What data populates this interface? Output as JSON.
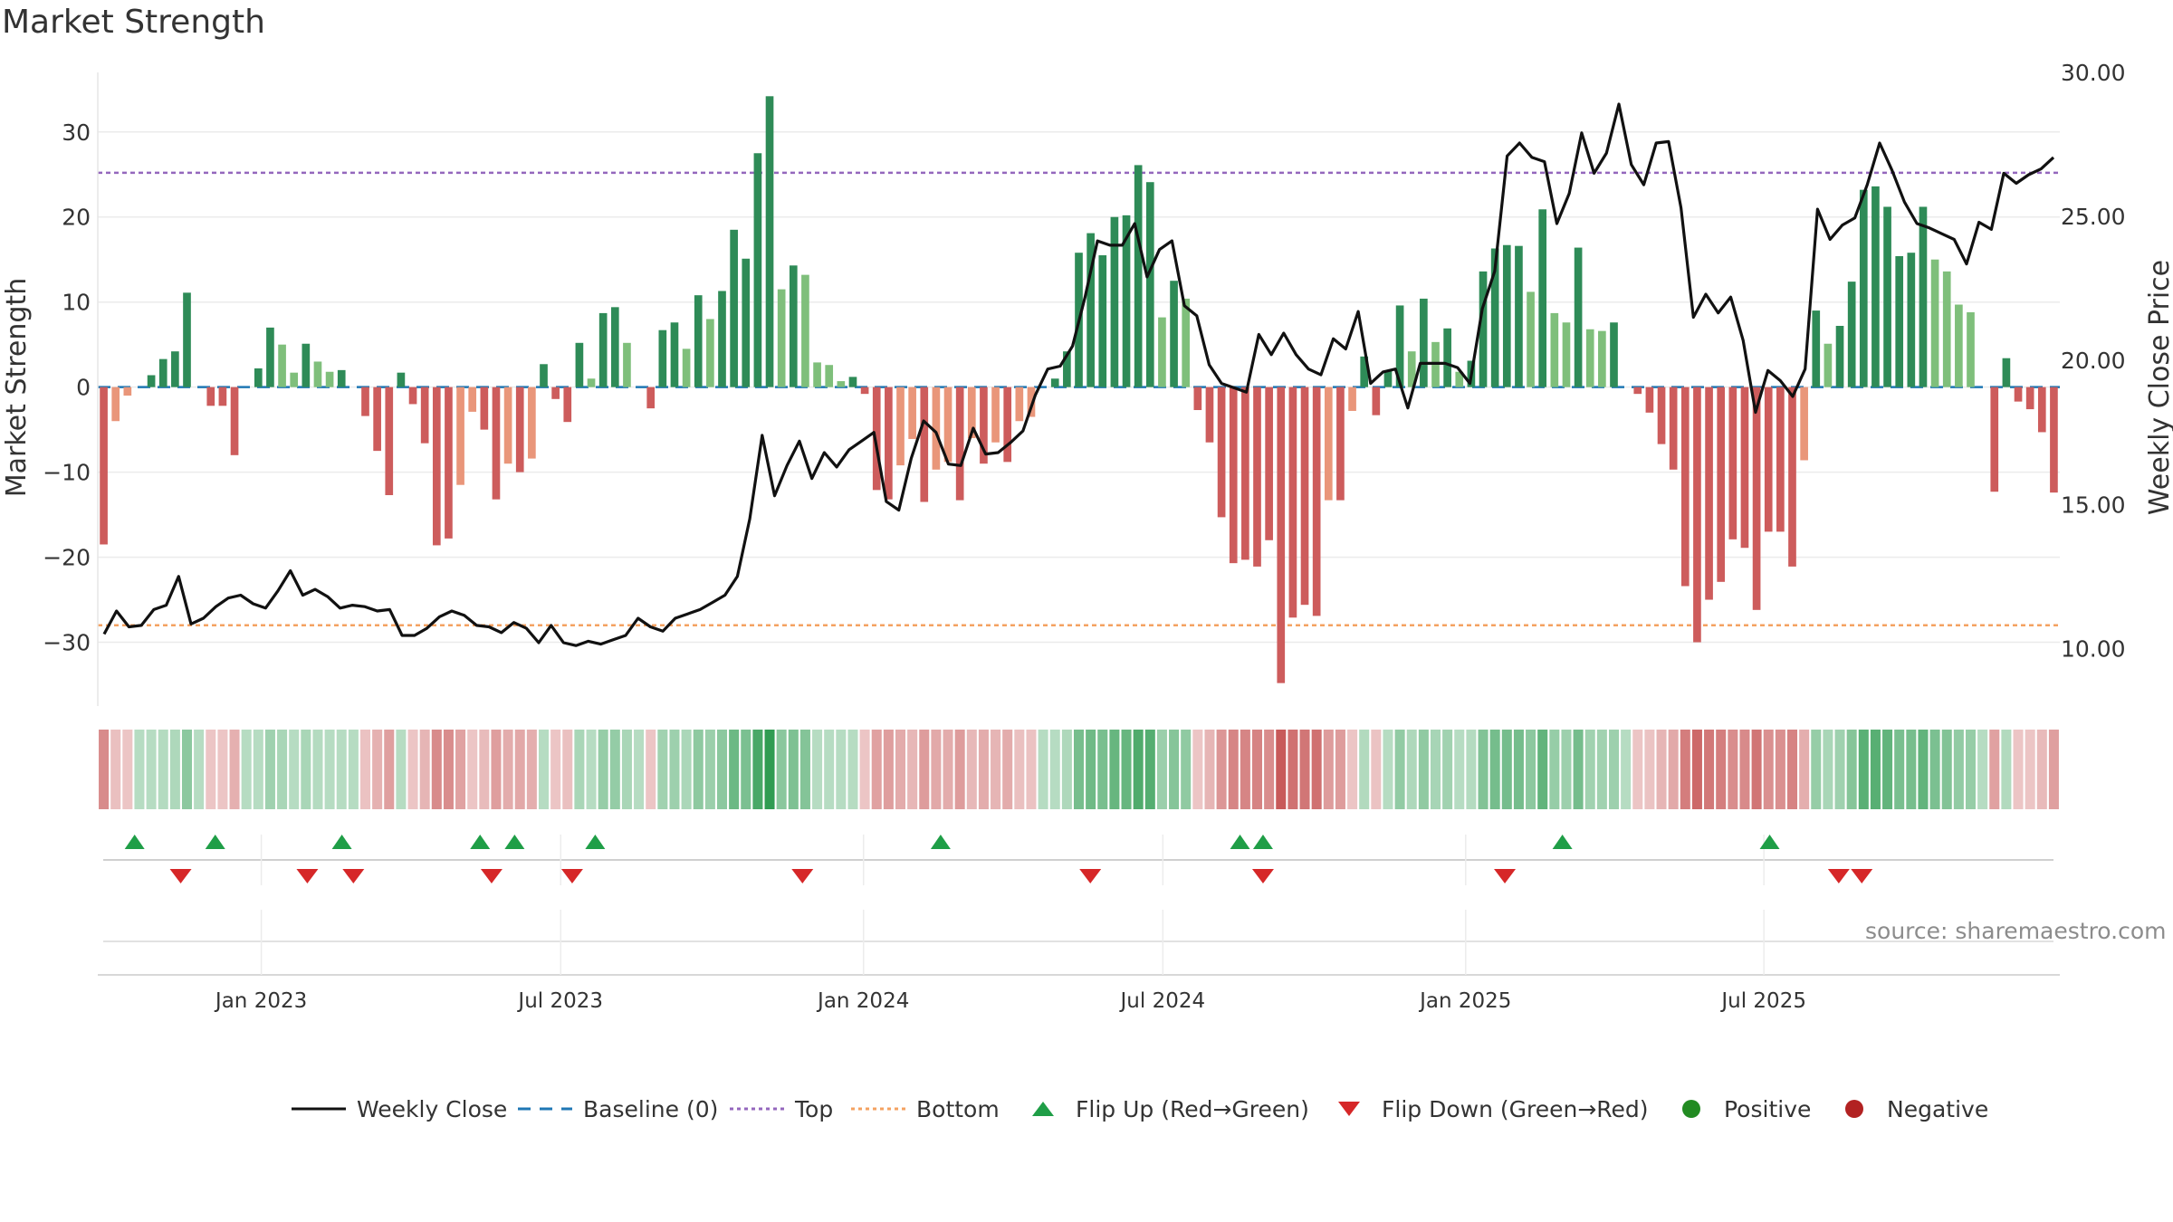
{
  "chart_data": {
    "type": "bar+line",
    "title": "Market Strength",
    "ylabel_left": "Market Strength",
    "ylabel_right": "Weekly Close Price",
    "left_axis": {
      "range": [
        -37.5,
        37.0
      ],
      "ticks": [
        30,
        20,
        10,
        0,
        -10,
        -20,
        -30
      ],
      "tick_labels": [
        "30",
        "20",
        "10",
        "0",
        "−10",
        "−20",
        "−30"
      ]
    },
    "right_axis": {
      "range": [
        8.0,
        30.0
      ],
      "ticks": [
        30,
        25,
        20,
        15,
        10
      ],
      "tick_labels": [
        "30.00",
        "25.00",
        "20.00",
        "15.00",
        "10.00"
      ]
    },
    "x_axis": {
      "start_week": -13.2,
      "end_week": 157.2,
      "ticks": [
        {
          "label": "Jan 2023",
          "week": 1.0
        },
        {
          "label": "Jul 2023",
          "week": 27.0
        },
        {
          "label": "Jan 2024",
          "week": 53.3
        },
        {
          "label": "Jul 2024",
          "week": 79.3
        },
        {
          "label": "Jan 2025",
          "week": 105.6
        },
        {
          "label": "Jul 2025",
          "week": 131.5
        }
      ]
    },
    "reference_lines": {
      "top": 25.2,
      "bottom": -28.0,
      "baseline": 0
    },
    "colors": {
      "green_dark": "#2e8b57",
      "green_light": "#7fbf7b",
      "red_dark": "#cd5c5c",
      "red_light": "#e9967a",
      "price_line": "#111111",
      "top_line": "#9467bd",
      "bottom_line": "#f4a261",
      "baseline": "#1f77b4",
      "flip_up": "#1f9e47",
      "flip_down": "#d62728",
      "positive_dot": "#228b22",
      "negative_dot": "#b22222"
    },
    "strength": [
      -18.5,
      -4,
      -1,
      0,
      1.4,
      3.3,
      4.2,
      11.1,
      0,
      -2.2,
      -2.2,
      -8,
      0,
      2.2,
      7,
      5,
      1.7,
      5.1,
      3,
      1.8,
      2,
      0,
      -3.4,
      -7.5,
      -12.7,
      1.7,
      -2,
      -6.6,
      -18.6,
      -17.8,
      -11.5,
      -2.9,
      -5,
      -13.2,
      -9,
      -10,
      -8.4,
      2.7,
      -1.4,
      -4.1,
      5.2,
      1,
      8.7,
      9.4,
      5.2,
      0,
      -2.5,
      6.7,
      7.6,
      4.5,
      10.8,
      8,
      11.3,
      18.5,
      15.1,
      27.5,
      34.2,
      11.5,
      14.3,
      13.2,
      2.9,
      2.6,
      0.7,
      1.2,
      -0.8,
      -12.1,
      -13.2,
      -9.2,
      -6.1,
      -13.5,
      -9.7,
      -8.8,
      -13.3,
      -6,
      -9,
      -6.5,
      -8.8,
      -4,
      -3.5,
      0,
      1,
      4.2,
      15.8,
      18.1,
      15.5,
      20,
      20.2,
      26.1,
      24.1,
      8.2,
      12.5,
      10.4,
      -2.7,
      -6.5,
      -15.3,
      -20.7,
      -20.3,
      -21.1,
      -18,
      -34.8,
      -27.1,
      -25.6,
      -26.9,
      -13.3,
      -13.3,
      -2.8,
      3.6,
      -3.3,
      1.9,
      9.6,
      4.2,
      10.4,
      5.3,
      6.9,
      1.8,
      3.1,
      13.6,
      16.3,
      16.7,
      16.6,
      11.2,
      20.9,
      8.7,
      7.6,
      16.4,
      6.8,
      6.6,
      7.6,
      0,
      -0.8,
      -3,
      -6.7,
      -9.7,
      -23.4,
      -30,
      -25,
      -22.9,
      -17.9,
      -18.9,
      -26.2,
      -17,
      -17,
      -21.1,
      -8.6,
      9,
      5.1,
      7.2,
      12.4,
      23.2,
      23.6,
      21.2,
      15.4,
      15.8,
      21.2,
      15,
      13.6,
      9.7,
      8.8,
      0,
      -12.3,
      3.4,
      -1.7,
      -2.6,
      -5.3,
      -12.4
    ],
    "price": [
      10.5,
      11.3,
      10.75,
      10.8,
      11.35,
      11.5,
      12.5,
      10.85,
      11.05,
      11.45,
      11.75,
      11.85,
      11.55,
      11.4,
      12,
      12.7,
      11.85,
      12.05,
      11.8,
      11.4,
      11.5,
      11.45,
      11.3,
      11.35,
      10.45,
      10.45,
      10.7,
      11.1,
      11.3,
      11.15,
      10.8,
      10.75,
      10.55,
      10.9,
      10.7,
      10.2,
      10.8,
      10.2,
      10.1,
      10.25,
      10.15,
      10.3,
      10.45,
      11.05,
      10.75,
      10.6,
      11.05,
      11.2,
      11.35,
      11.6,
      11.85,
      12.5,
      14.5,
      17.4,
      15.3,
      16.35,
      17.2,
      15.9,
      16.8,
      16.3,
      16.9,
      17.2,
      17.5,
      15.1,
      14.8,
      16.6,
      17.9,
      17.5,
      16.4,
      16.35,
      17.65,
      16.75,
      16.8,
      17.15,
      17.55,
      18.8,
      19.7,
      19.8,
      20.5,
      22.2,
      24.15,
      24,
      24,
      24.75,
      22.9,
      23.85,
      24.15,
      21.9,
      21.55,
      19.85,
      19.2,
      19.05,
      18.9,
      20.9,
      20.2,
      20.95,
      20.2,
      19.7,
      19.5,
      20.75,
      20.4,
      21.7,
      19.2,
      19.6,
      19.7,
      18.35,
      19.9,
      19.9,
      19.9,
      19.75,
      19.2,
      21.8,
      23.1,
      27.1,
      27.55,
      27.05,
      26.9,
      24.75,
      25.8,
      27.9,
      26.5,
      27.2,
      28.9,
      26.8,
      26.1,
      27.55,
      27.6,
      25.3,
      21.5,
      22.3,
      21.65,
      22.2,
      20.7,
      18.2,
      19.65,
      19.3,
      18.75,
      19.7,
      25.25,
      24.2,
      24.7,
      24.95,
      26.1,
      27.55,
      26.6,
      25.5,
      24.75,
      24.6,
      24.4,
      24.2,
      23.35,
      24.8,
      24.55,
      26.5,
      26.15,
      26.45,
      26.65,
      27.05
    ],
    "flip_up_weeks": [
      -10,
      -3,
      8,
      20,
      23,
      30,
      60,
      86,
      88,
      114,
      132
    ],
    "flip_down_weeks": [
      -6,
      5,
      9,
      21,
      28,
      48,
      73,
      88,
      109,
      138,
      140
    ],
    "source": "source: sharemaestro.com",
    "legend": [
      {
        "label": "Weekly Close",
        "symbol": "line"
      },
      {
        "label": "Baseline (0)",
        "symbol": "dash"
      },
      {
        "label": "Top",
        "symbol": "dotted-purple"
      },
      {
        "label": "Bottom",
        "symbol": "dotted-orange"
      },
      {
        "label": "Flip Up (Red→Green)",
        "symbol": "triangle-up"
      },
      {
        "label": "Flip Down (Green→Red)",
        "symbol": "triangle-down"
      },
      {
        "label": "Positive",
        "symbol": "dot-green"
      },
      {
        "label": "Negative",
        "symbol": "dot-red"
      }
    ]
  }
}
